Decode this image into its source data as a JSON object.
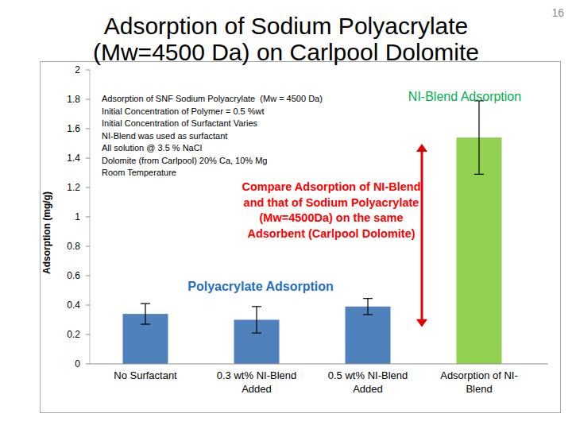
{
  "page_number": "16",
  "chart_data": {
    "type": "bar",
    "title": "Adsorption of Sodium Polyacrylate (Mw=4500 Da) on Carlpool Dolomite",
    "y_label": "Adsorption (mg/g)",
    "categories": [
      "No Surfactant",
      "0.3 wt% NI-Blend Added",
      "0.5 wt% NI-Blend Added",
      "Adsorption of NI-Blend"
    ],
    "values": [
      0.34,
      0.3,
      0.39,
      1.54
    ],
    "errors": [
      0.07,
      0.09,
      0.055,
      0.25
    ],
    "colors": [
      "#4f81bd",
      "#4f81bd",
      "#4f81bd",
      "#92d050"
    ],
    "ylim": [
      0,
      2
    ],
    "yticks": [
      0,
      0.2,
      0.4,
      0.6,
      0.8,
      1,
      1.2,
      1.4,
      1.6,
      1.8,
      2
    ],
    "grid": false,
    "annotations": [
      {
        "lines": [
          "Adsorption of SNF Sodium Polyacrylate  (Mw = 4500 Da)",
          "Initial Concentration of Polymer = 0.5 %wt",
          "Initial Concentration of Surfactant Varies",
          "NI-Blend was used as surfactant",
          "All solution @ 3.5 % NaCl",
          "Dolomite (from Carlpool) 20% Ca, 10% Mg",
          "Room Temperature"
        ]
      },
      {
        "lines": [
          "NI-Blend Adsorption"
        ]
      },
      {
        "lines": [
          "Compare Adsorption of NI-Blend",
          "and that of Sodium Polyacrylate",
          "(Mw=4500Da) on the same",
          "Adsorbent (Carlpool Dolomite)"
        ]
      },
      {
        "lines": [
          "Polyacrylate Adsorption"
        ]
      }
    ]
  }
}
